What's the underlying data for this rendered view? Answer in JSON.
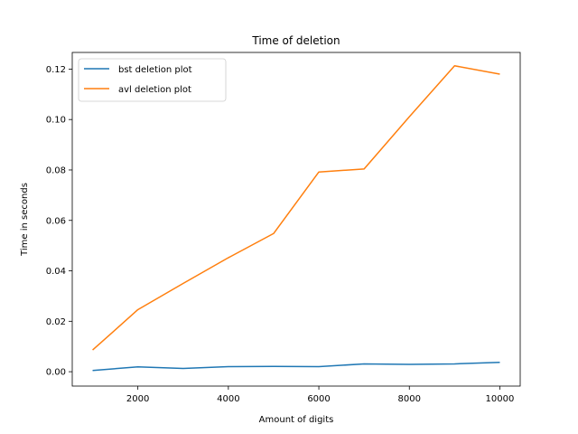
{
  "chart_data": {
    "type": "line",
    "title": "Time of deletion",
    "xlabel": "Amount of digits",
    "ylabel": "Time in seconds",
    "xlim": [
      550,
      10450
    ],
    "ylim": [
      -0.0057,
      0.1266
    ],
    "x": [
      1000,
      2000,
      3000,
      4000,
      5000,
      6000,
      7000,
      8000,
      9000,
      10000
    ],
    "xticks": [
      2000,
      4000,
      6000,
      8000,
      10000
    ],
    "xtick_labels": [
      "2000",
      "4000",
      "6000",
      "8000",
      "10000"
    ],
    "yticks": [
      0.0,
      0.02,
      0.04,
      0.06,
      0.08,
      0.1,
      0.12
    ],
    "ytick_labels": [
      "0.00",
      "0.02",
      "0.04",
      "0.06",
      "0.08",
      "0.10",
      "0.12"
    ],
    "grid": false,
    "legend_position": "top-left",
    "series": [
      {
        "name": "bst deletion plot",
        "color": "#1f77b4",
        "values": [
          0.0005,
          0.0019,
          0.0013,
          0.002,
          0.0021,
          0.002,
          0.0031,
          0.0029,
          0.0031,
          0.0037
        ]
      },
      {
        "name": "avl deletion plot",
        "color": "#ff7f0e",
        "values": [
          0.0086,
          0.0246,
          0.035,
          0.0452,
          0.0548,
          0.0792,
          0.0804,
          0.1011,
          0.1213,
          0.118
        ]
      }
    ]
  }
}
